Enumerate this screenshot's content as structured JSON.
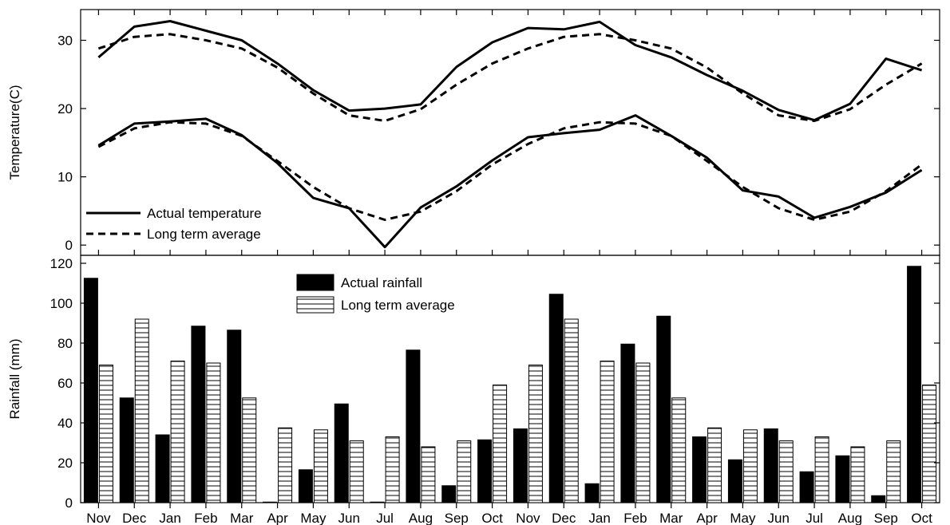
{
  "chart_data": [
    {
      "type": "line",
      "title": "",
      "xlabel": "",
      "ylabel": "Temperature(C)",
      "ylim": [
        -1.5,
        34.5
      ],
      "yticks": [
        0,
        10,
        20,
        30
      ],
      "grid": false,
      "legend_placement": "bottom-left",
      "legend": [
        "Actual temperature",
        "Long term average"
      ],
      "categories": [
        "Nov",
        "Dec",
        "Jan",
        "Feb",
        "Mar",
        "Apr",
        "May",
        "Jun",
        "Jul",
        "Aug",
        "Sep",
        "Oct",
        "Nov",
        "Dec",
        "Jan",
        "Feb",
        "Mar",
        "Apr",
        "May",
        "Jun",
        "Jul",
        "Aug",
        "Sep",
        "Oct"
      ],
      "series": [
        {
          "name": "Actual temperature",
          "style": "solid",
          "group": "max",
          "values": [
            27.5,
            32.0,
            32.8,
            31.4,
            30.0,
            26.6,
            22.7,
            19.7,
            20.0,
            20.6,
            26.1,
            29.7,
            31.8,
            31.6,
            32.7,
            29.3,
            27.5,
            24.9,
            22.6,
            19.8,
            18.3,
            20.7,
            27.3,
            25.6
          ]
        },
        {
          "name": "Actual temperature",
          "style": "solid",
          "group": "min",
          "values": [
            14.6,
            17.8,
            18.1,
            18.5,
            16.1,
            12.0,
            6.9,
            5.4,
            -0.3,
            5.5,
            8.6,
            12.4,
            15.8,
            16.4,
            16.9,
            19.0,
            16.0,
            12.8,
            8.0,
            7.1,
            4.0,
            5.6,
            7.7,
            11.0
          ]
        },
        {
          "name": "Long term average",
          "style": "dashed",
          "group": "max",
          "values": [
            28.8,
            30.5,
            30.9,
            30.0,
            28.8,
            26.0,
            22.2,
            19.0,
            18.2,
            19.9,
            23.5,
            26.6,
            28.8,
            30.5,
            30.9,
            30.0,
            28.8,
            26.0,
            22.2,
            19.0,
            18.2,
            19.9,
            23.5,
            26.6
          ]
        },
        {
          "name": "Long term average",
          "style": "dashed",
          "group": "min",
          "values": [
            14.4,
            17.1,
            18.0,
            17.8,
            16.0,
            12.3,
            8.5,
            5.4,
            3.7,
            4.9,
            7.9,
            11.8,
            14.8,
            17.1,
            18.0,
            17.8,
            16.0,
            12.3,
            8.5,
            5.4,
            3.7,
            4.9,
            7.9,
            11.8
          ]
        }
      ]
    },
    {
      "type": "bar",
      "title": "",
      "xlabel": "",
      "ylabel": "Rainfall (mm)",
      "ylim": [
        0,
        124
      ],
      "yticks": [
        0,
        20,
        40,
        60,
        80,
        100,
        120
      ],
      "grid": false,
      "legend_placement": "top-center",
      "categories": [
        "Nov",
        "Dec",
        "Jan",
        "Feb",
        "Mar",
        "Apr",
        "May",
        "Jun",
        "Jul",
        "Aug",
        "Sep",
        "Oct",
        "Nov",
        "Dec",
        "Jan",
        "Feb",
        "Mar",
        "Apr",
        "May",
        "Jun",
        "Jul",
        "Aug",
        "Sep",
        "Oct"
      ],
      "series": [
        {
          "name": "Actual rainfall",
          "fill": "solid",
          "values": [
            112.5,
            52.5,
            34.0,
            88.5,
            86.5,
            0.3,
            16.5,
            49.5,
            0.3,
            76.5,
            8.5,
            31.5,
            37.0,
            104.5,
            9.5,
            79.5,
            93.5,
            33.0,
            21.5,
            37.0,
            15.5,
            23.5,
            3.5,
            118.5
          ]
        },
        {
          "name": "Long term average",
          "fill": "horizontal-hatch",
          "values": [
            69.0,
            92.0,
            71.0,
            70.0,
            52.5,
            37.5,
            36.5,
            31.0,
            33.0,
            28.0,
            31.0,
            59.0,
            69.0,
            92.0,
            71.0,
            70.0,
            52.5,
            37.5,
            36.5,
            31.0,
            33.0,
            28.0,
            31.0,
            59.0
          ]
        }
      ]
    }
  ],
  "colors": {
    "foreground": "#000000",
    "background": "#ffffff"
  }
}
